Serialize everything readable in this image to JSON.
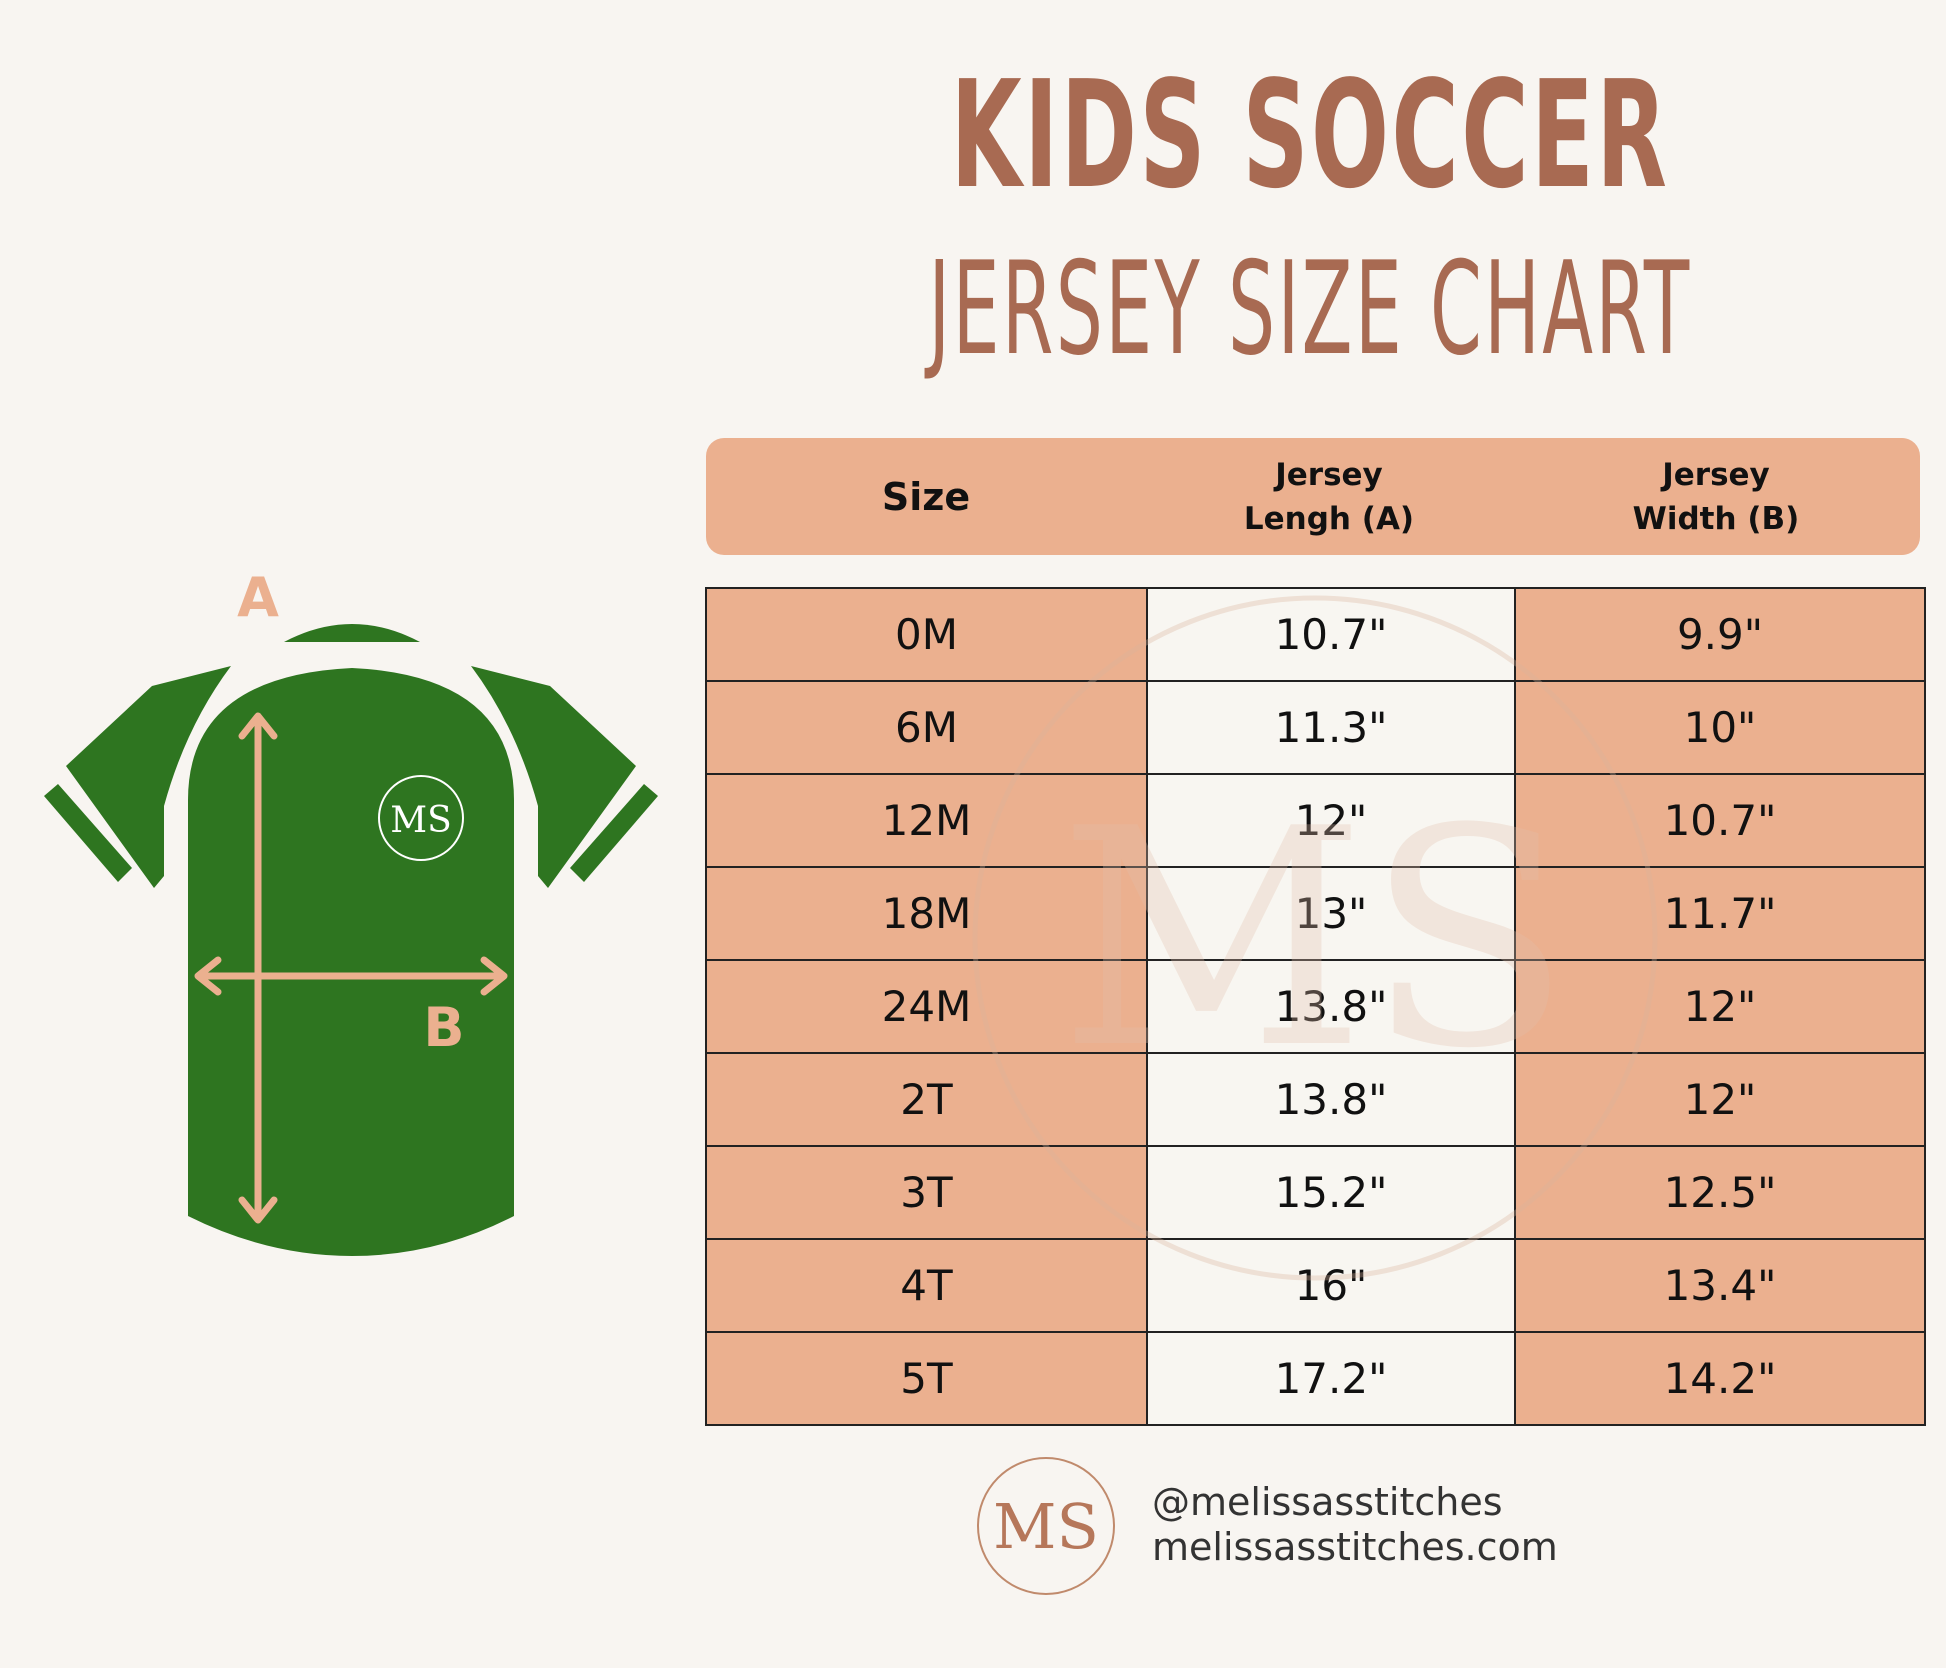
{
  "title": {
    "line1": "KIDS SOCCER",
    "line2": "JERSEY SIZE CHART"
  },
  "colors": {
    "accent_brown": "#a86a52",
    "peach": "#ebb08f",
    "jersey_green": "#2e7520",
    "background": "#f8f5f1"
  },
  "diagram": {
    "label_a": "A",
    "label_b": "B",
    "jersey_logo": "MS"
  },
  "table": {
    "headers": {
      "size": "Size",
      "length_line1": "Jersey",
      "length_line2": "Lengh (A)",
      "width_line1": "Jersey",
      "width_line2": "Width (B)"
    },
    "rows": [
      {
        "size": "0M",
        "length": "10.7\"",
        "width": "9.9\""
      },
      {
        "size": "6M",
        "length": "11.3\"",
        "width": "10\""
      },
      {
        "size": "12M",
        "length": "12\"",
        "width": "10.7\""
      },
      {
        "size": "18M",
        "length": "13\"",
        "width": "11.7\""
      },
      {
        "size": "24M",
        "length": "13.8\"",
        "width": "12\""
      },
      {
        "size": "2T",
        "length": "13.8\"",
        "width": "12\""
      },
      {
        "size": "3T",
        "length": "15.2\"",
        "width": "12.5\""
      },
      {
        "size": "4T",
        "length": "16\"",
        "width": "13.4\""
      },
      {
        "size": "5T",
        "length": "17.2\"",
        "width": "14.2\""
      }
    ]
  },
  "footer": {
    "logo": "MS",
    "handle": "@melissasstitches",
    "website": "melissasstitches.com"
  }
}
